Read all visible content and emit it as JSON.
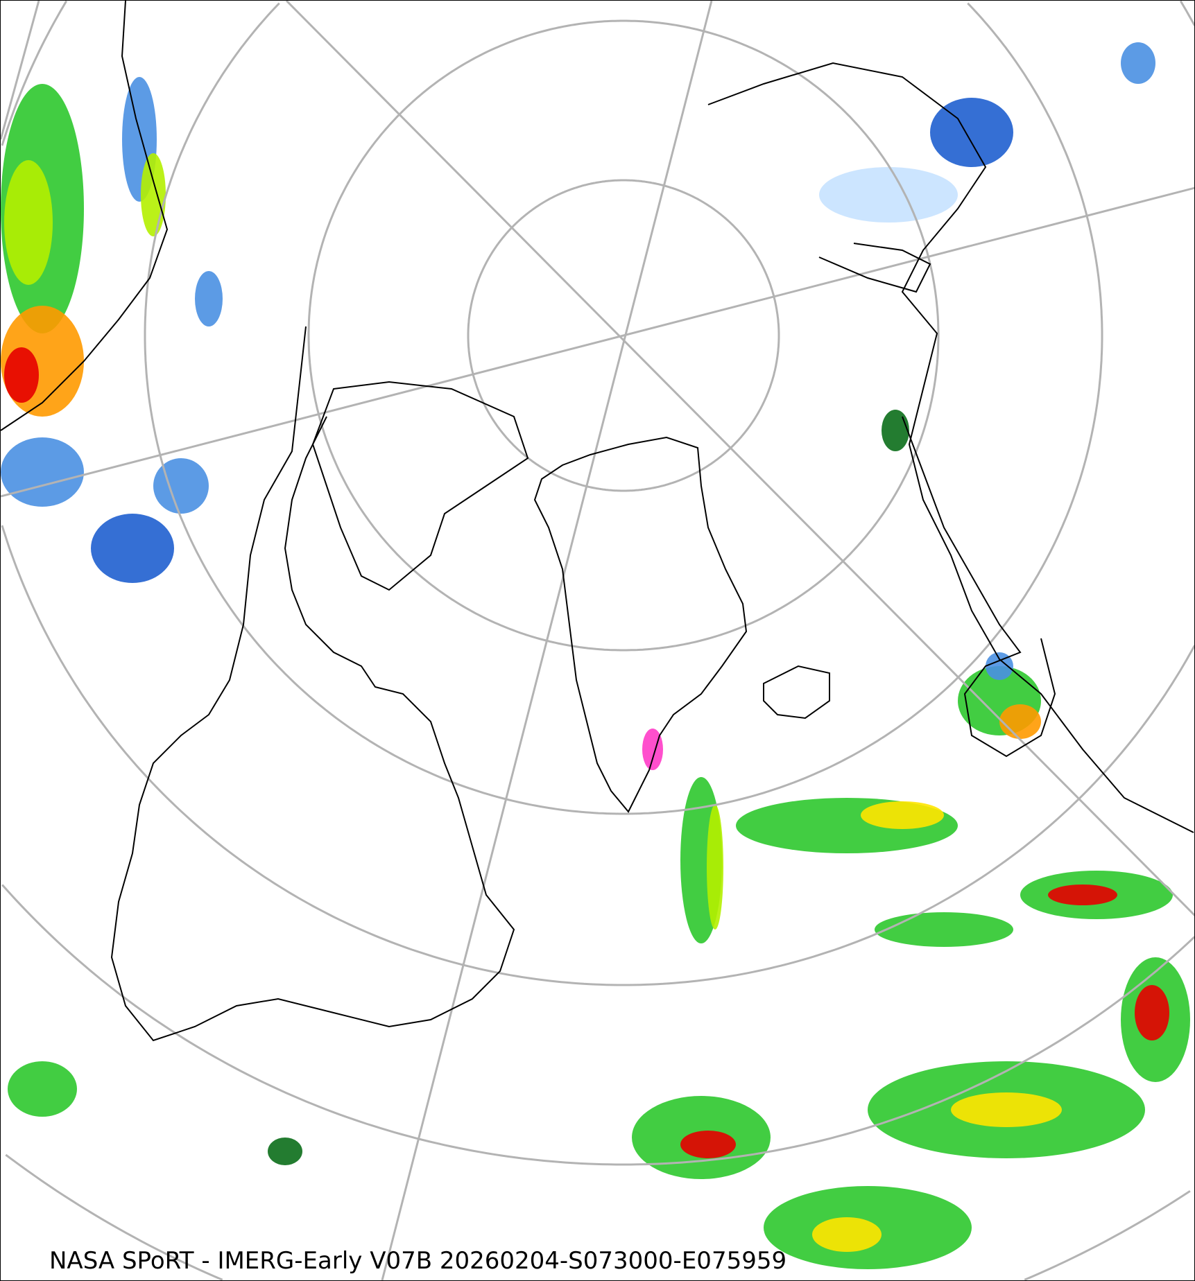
{
  "map": {
    "projection": "north polar stereographic",
    "caption": "NASA SPoRT - IMERG-Early V07B 20260204-S073000-E075959",
    "colors": {
      "graticule": "#b3b3b3",
      "coastline": "#000000",
      "precip_light_blue": "#c6e2ff",
      "precip_blue": "#4a90e2",
      "precip_dark_blue": "#1f5fcf",
      "precip_dark_green": "#0b6e1a",
      "precip_green": "#2dc82d",
      "precip_lime": "#b4f000",
      "precip_yellow": "#ffe600",
      "precip_orange": "#ff9a00",
      "precip_red": "#e60000",
      "precip_magenta": "#ff3cc8"
    }
  }
}
